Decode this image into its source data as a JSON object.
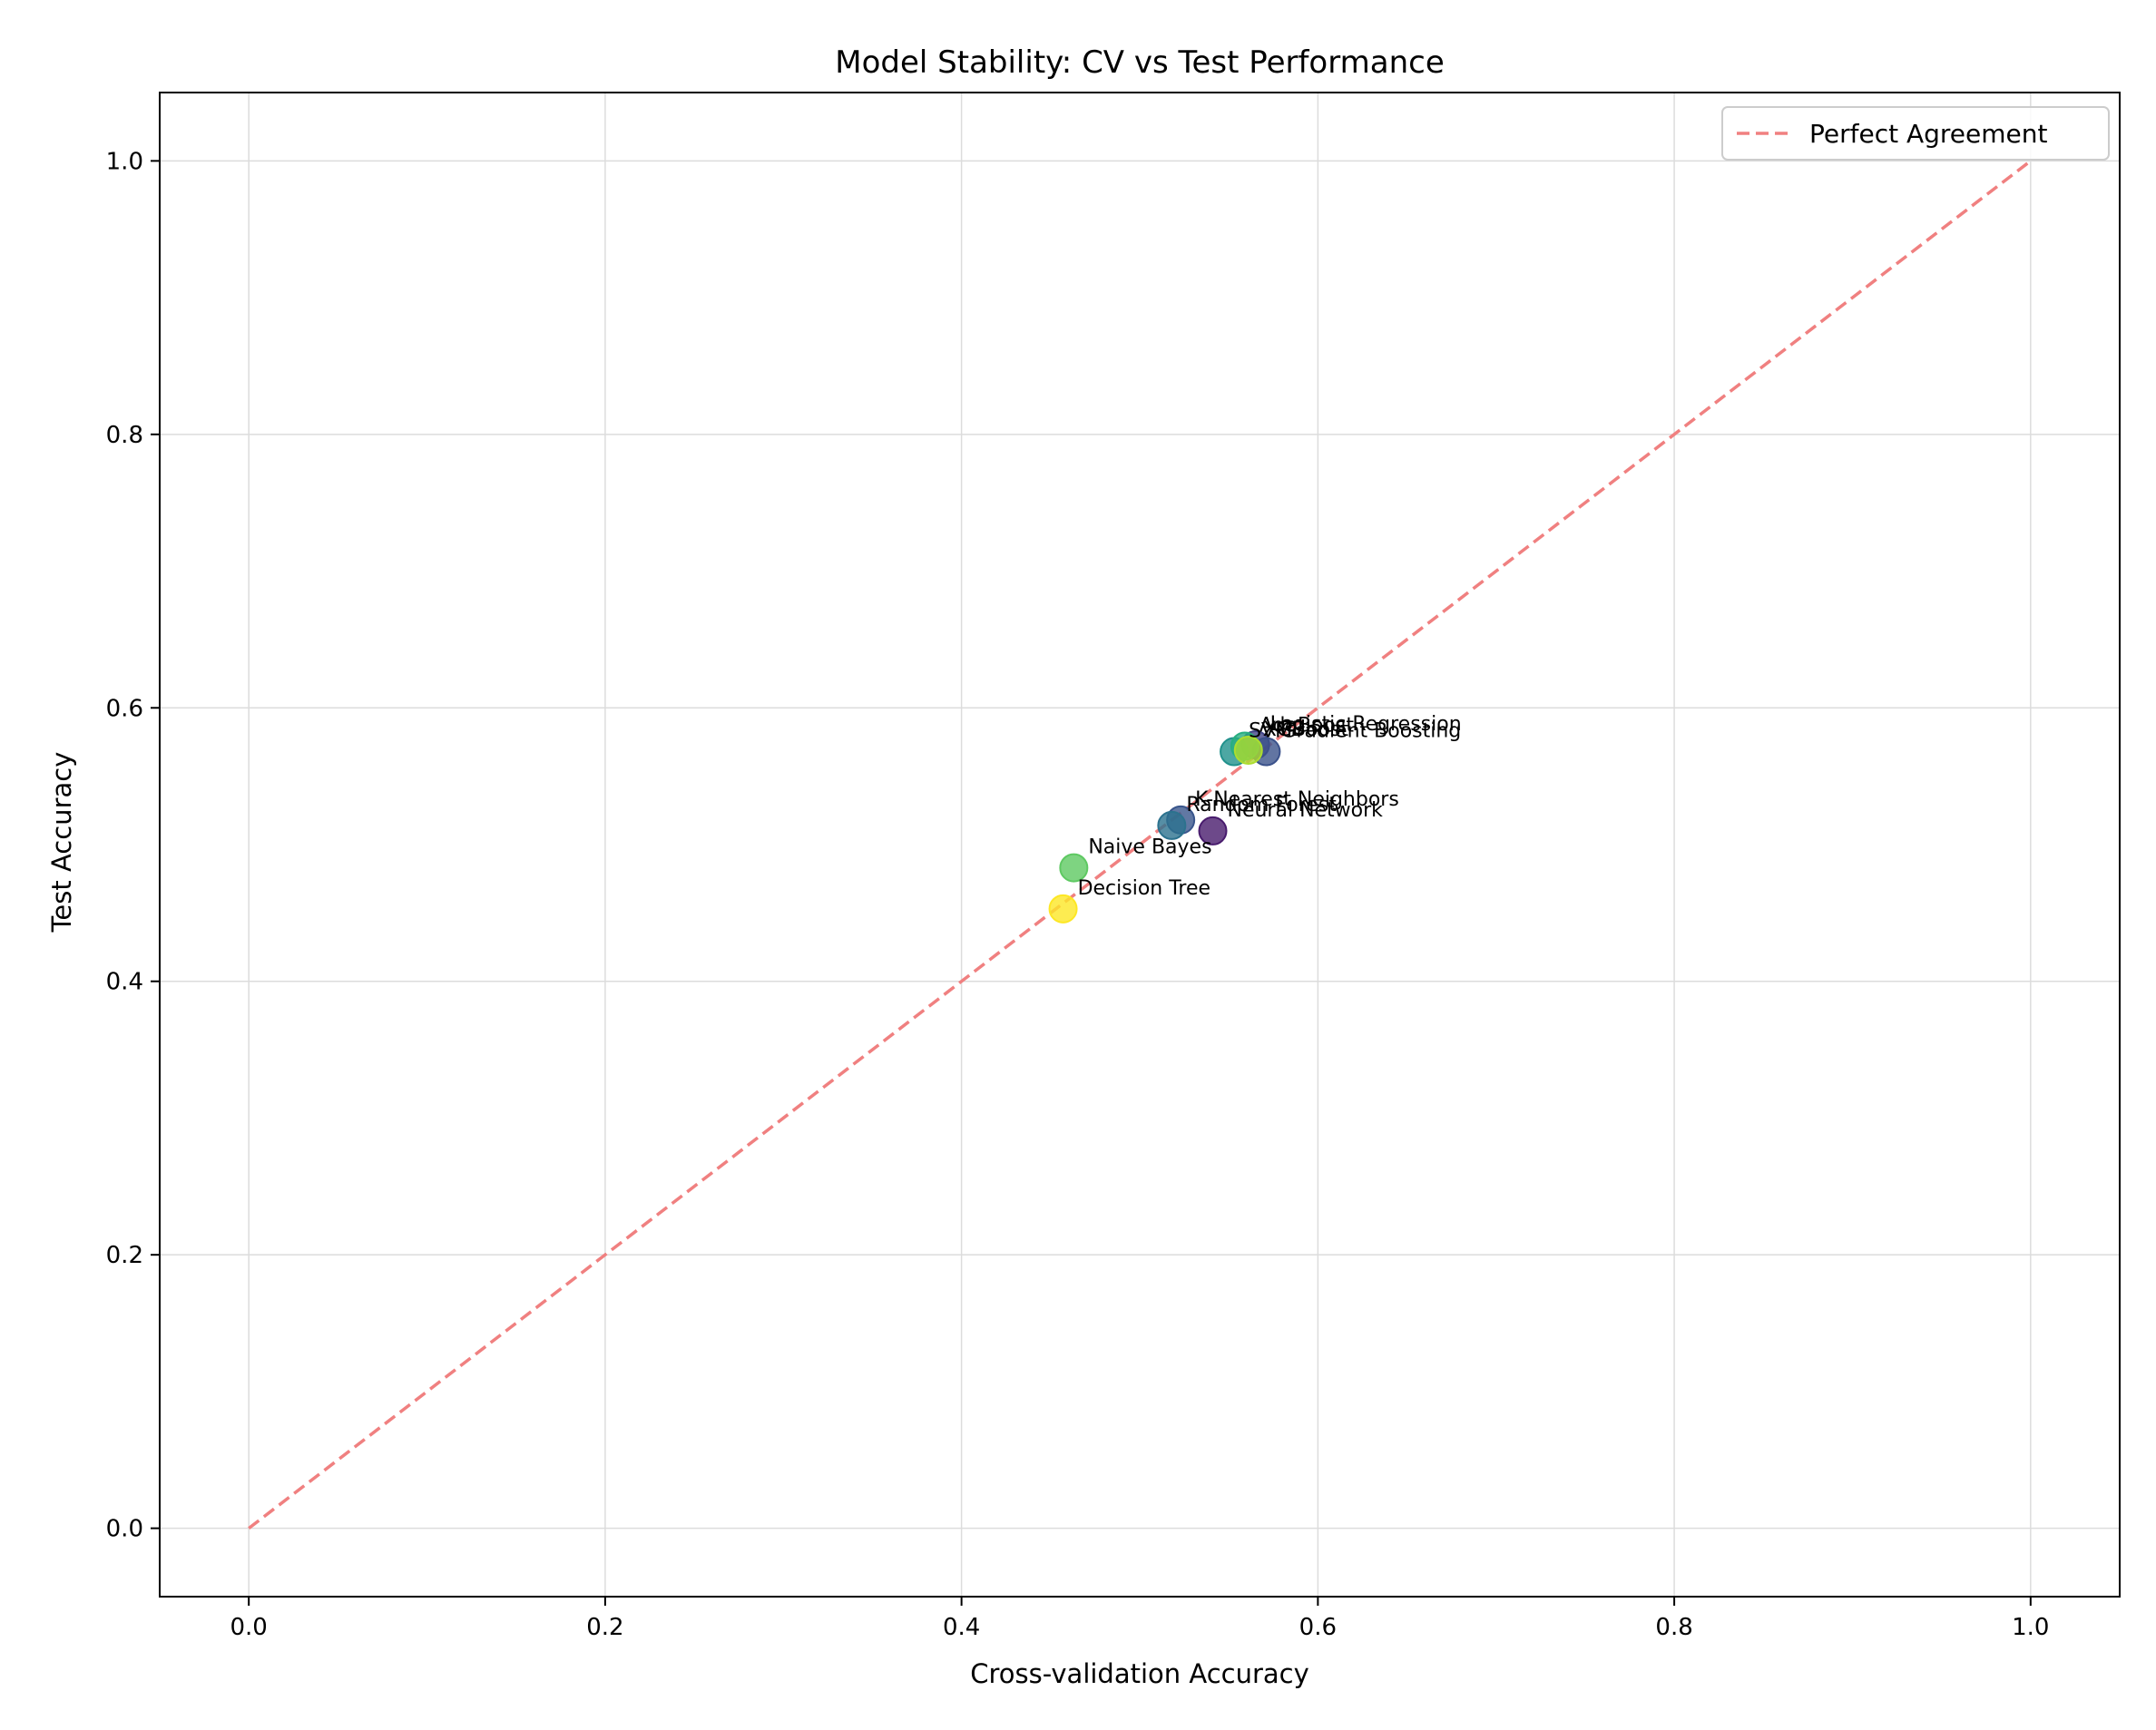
{
  "chart_data": {
    "type": "scatter",
    "title": "Model Stability: CV vs Test Performance",
    "xlabel": "Cross-validation Accuracy",
    "ylabel": "Test Accuracy",
    "xlim": [
      -0.05,
      1.05
    ],
    "ylim": [
      -0.05,
      1.05
    ],
    "xticks": [
      "0.0",
      "0.2",
      "0.4",
      "0.6",
      "0.8",
      "1.0"
    ],
    "yticks": [
      "0.0",
      "0.2",
      "0.4",
      "0.6",
      "0.8",
      "1.0"
    ],
    "grid": true,
    "legend": {
      "placement": "upper-right",
      "entries": [
        "Perfect Agreement"
      ]
    },
    "reference_line": {
      "name": "Perfect Agreement",
      "x": [
        0,
        1
      ],
      "y": [
        0,
        1
      ],
      "color": "#f08080",
      "style": "dashed"
    },
    "points": [
      {
        "label": "Neural Network",
        "x": 0.541,
        "y": 0.51,
        "color": "#481b6d"
      },
      {
        "label": "Logistic Regression",
        "x": 0.565,
        "y": 0.573,
        "color": "#414487"
      },
      {
        "label": "K-Nearest Neighbors",
        "x": 0.523,
        "y": 0.518,
        "color": "#39568c"
      },
      {
        "label": "Gradient Boosting",
        "x": 0.571,
        "y": 0.568,
        "color": "#3b528b"
      },
      {
        "label": "Random Forest",
        "x": 0.518,
        "y": 0.514,
        "color": "#2c728e"
      },
      {
        "label": "SVM",
        "x": 0.553,
        "y": 0.568,
        "color": "#21918c"
      },
      {
        "label": "AdaBoost",
        "x": 0.559,
        "y": 0.572,
        "color": "#28ae80"
      },
      {
        "label": "Naive Bayes",
        "x": 0.463,
        "y": 0.483,
        "color": "#5ec962"
      },
      {
        "label": "XGBoost",
        "x": 0.561,
        "y": 0.569,
        "color": "#addc30"
      },
      {
        "label": "Decision Tree",
        "x": 0.457,
        "y": 0.453,
        "color": "#fde725"
      }
    ],
    "label_overlap_note": ""
  }
}
